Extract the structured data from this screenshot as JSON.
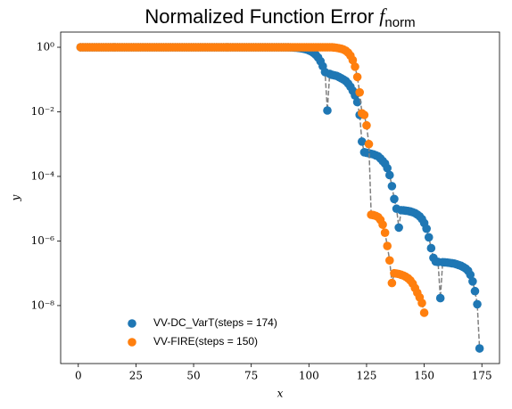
{
  "chart_data": {
    "type": "scatter",
    "title": "Normalized Function Error",
    "title_math": "f",
    "title_sub": "norm",
    "xlabel": "x",
    "ylabel": "y",
    "xlim": [
      -7.65,
      182.65
    ],
    "xticks": [
      0,
      25,
      50,
      75,
      100,
      125,
      150,
      175
    ],
    "ylim": [
      1.6e-10,
      2.95
    ],
    "log_y": true,
    "yticks": [
      {
        "value": 1,
        "label": "10⁰"
      },
      {
        "value": 0.01,
        "label": "10⁻²"
      },
      {
        "value": 0.0001,
        "label": "10⁻⁴"
      },
      {
        "value": 1e-06,
        "label": "10⁻⁶"
      },
      {
        "value": 1e-08,
        "label": "10⁻⁸"
      }
    ],
    "legend": "lower left",
    "connect_line_color": "#808080",
    "connect_line_dashed": true,
    "series": [
      {
        "name": "VV-DC_VarT(steps = 174)",
        "color": "#1f77b4",
        "x": [
          1,
          2,
          3,
          4,
          5,
          6,
          7,
          8,
          9,
          10,
          11,
          12,
          13,
          14,
          15,
          16,
          17,
          18,
          19,
          20,
          21,
          22,
          23,
          24,
          25,
          26,
          27,
          28,
          29,
          30,
          31,
          32,
          33,
          34,
          35,
          36,
          37,
          38,
          39,
          40,
          41,
          42,
          43,
          44,
          45,
          46,
          47,
          48,
          49,
          50,
          51,
          52,
          53,
          54,
          55,
          56,
          57,
          58,
          59,
          60,
          61,
          62,
          63,
          64,
          65,
          66,
          67,
          68,
          69,
          70,
          71,
          72,
          73,
          74,
          75,
          76,
          77,
          78,
          79,
          80,
          81,
          82,
          83,
          84,
          85,
          86,
          87,
          88,
          89,
          90,
          91,
          92,
          93,
          94,
          95,
          96,
          97,
          98,
          99,
          100,
          101,
          102,
          103,
          104,
          105,
          106,
          107,
          108,
          109,
          110,
          111,
          112,
          113,
          114,
          115,
          116,
          117,
          118,
          119,
          120,
          121,
          122,
          123,
          124,
          125,
          126,
          127,
          128,
          129,
          130,
          131,
          132,
          133,
          134,
          135,
          136,
          137,
          138,
          139,
          140,
          141,
          142,
          143,
          144,
          145,
          146,
          147,
          148,
          149,
          150,
          151,
          152,
          153,
          154,
          155,
          156,
          157,
          158,
          159,
          160,
          161,
          162,
          163,
          164,
          165,
          166,
          167,
          168,
          169,
          170,
          171,
          172,
          173,
          174
        ],
        "values": [
          1,
          1,
          1,
          1,
          1,
          1,
          1,
          1,
          1,
          1,
          1,
          1,
          1,
          1,
          1,
          1,
          1,
          1,
          1,
          1,
          1,
          1,
          1,
          1,
          1,
          1,
          1,
          1,
          1,
          1,
          1,
          1,
          1,
          1,
          1,
          1,
          1,
          1,
          1,
          1,
          1,
          1,
          1,
          1,
          1,
          1,
          1,
          1,
          1,
          1,
          1,
          1,
          1,
          1,
          1,
          1,
          1,
          1,
          1,
          1,
          1,
          1,
          1,
          1,
          1,
          1,
          1,
          1,
          1,
          1,
          1,
          1,
          1,
          1,
          1,
          1,
          1,
          1,
          1,
          1,
          1,
          1,
          1,
          1,
          1,
          1,
          1,
          0.999,
          0.998,
          0.997,
          0.995,
          0.99,
          0.985,
          0.975,
          0.96,
          0.94,
          0.92,
          0.89,
          0.85,
          0.8,
          0.74,
          0.67,
          0.58,
          0.48,
          0.37,
          0.26,
          0.17,
          0.011,
          0.15,
          0.14,
          0.135,
          0.13,
          0.12,
          0.11,
          0.1,
          0.09,
          0.075,
          0.06,
          0.045,
          0.032,
          0.02,
          0.008,
          0.0012,
          0.00056,
          0.00054,
          0.00052,
          0.0005,
          0.00048,
          0.00045,
          0.00042,
          0.00036,
          0.0003,
          0.00025,
          0.00018,
          0.00011,
          5e-05,
          2e-05,
          1e-05,
          2.6e-06,
          9e-06,
          8.9e-06,
          8.7e-06,
          8.5e-06,
          8.2e-06,
          7.8e-06,
          7.3e-06,
          6.6e-06,
          5.8e-06,
          4.8e-06,
          3.6e-06,
          2.4e-06,
          1.3e-06,
          6e-07,
          3e-07,
          2.3e-07,
          2.25e-07,
          1.7e-08,
          2.2e-07,
          2.18e-07,
          2.15e-07,
          2.1e-07,
          2.05e-07,
          2e-07,
          1.9e-07,
          1.8e-07,
          1.7e-07,
          1.55e-07,
          1.4e-07,
          1.2e-07,
          9e-08,
          5.6e-08,
          2.8e-08,
          1.1e-08,
          4.7e-10
        ]
      },
      {
        "name": "VV-FIRE(steps = 150)",
        "color": "#ff7f0e",
        "x": [
          1,
          2,
          3,
          4,
          5,
          6,
          7,
          8,
          9,
          10,
          11,
          12,
          13,
          14,
          15,
          16,
          17,
          18,
          19,
          20,
          21,
          22,
          23,
          24,
          25,
          26,
          27,
          28,
          29,
          30,
          31,
          32,
          33,
          34,
          35,
          36,
          37,
          38,
          39,
          40,
          41,
          42,
          43,
          44,
          45,
          46,
          47,
          48,
          49,
          50,
          51,
          52,
          53,
          54,
          55,
          56,
          57,
          58,
          59,
          60,
          61,
          62,
          63,
          64,
          65,
          66,
          67,
          68,
          69,
          70,
          71,
          72,
          73,
          74,
          75,
          76,
          77,
          78,
          79,
          80,
          81,
          82,
          83,
          84,
          85,
          86,
          87,
          88,
          89,
          90,
          91,
          92,
          93,
          94,
          95,
          96,
          97,
          98,
          99,
          100,
          101,
          102,
          103,
          104,
          105,
          106,
          107,
          108,
          109,
          110,
          111,
          112,
          113,
          114,
          115,
          116,
          117,
          118,
          119,
          120,
          121,
          122,
          123,
          124,
          125,
          126,
          127,
          128,
          129,
          130,
          131,
          132,
          133,
          134,
          135,
          136,
          137,
          138,
          139,
          140,
          141,
          142,
          143,
          144,
          145,
          146,
          147,
          148,
          149,
          150
        ],
        "values": [
          1,
          1,
          1,
          1,
          1,
          1,
          1,
          1,
          1,
          1,
          1,
          1,
          1,
          1,
          1,
          1,
          1,
          1,
          1,
          1,
          1,
          1,
          1,
          1,
          1,
          1,
          1,
          1,
          1,
          1,
          1,
          1,
          1,
          1,
          1,
          1,
          1,
          1,
          1,
          1,
          1,
          1,
          1,
          1,
          1,
          1,
          1,
          1,
          1,
          1,
          1,
          1,
          1,
          1,
          1,
          1,
          1,
          1,
          1,
          1,
          1,
          1,
          1,
          1,
          1,
          1,
          1,
          1,
          1,
          1,
          1,
          1,
          1,
          1,
          1,
          1,
          1,
          1,
          1,
          1,
          1,
          1,
          1,
          1,
          1,
          1,
          1,
          1,
          1,
          1,
          1,
          1,
          1,
          1,
          1,
          1,
          1,
          1,
          1,
          1,
          1,
          1,
          1,
          1,
          1,
          1,
          1,
          1,
          1,
          1,
          0.98,
          0.96,
          0.93,
          0.9,
          0.85,
          0.78,
          0.68,
          0.55,
          0.4,
          0.25,
          0.12,
          0.04,
          0.009,
          0.008,
          0.0038,
          0.001,
          6.5e-06,
          6.3e-06,
          6e-06,
          5.5e-06,
          4.5e-06,
          3.2e-06,
          1.8e-06,
          7e-07,
          2.5e-07,
          5e-08,
          1e-07,
          9.8e-08,
          9.5e-08,
          9e-08,
          8.5e-08,
          7.8e-08,
          7e-08,
          6e-08,
          4.8e-08,
          3.5e-08,
          2.5e-08,
          1.8e-08,
          1.2e-08,
          6e-09
        ]
      }
    ]
  }
}
